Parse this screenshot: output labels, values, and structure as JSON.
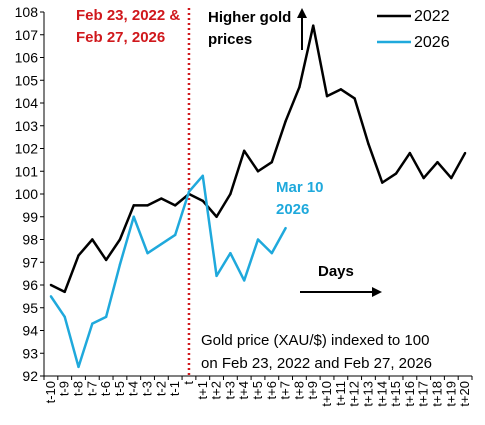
{
  "chart_data": {
    "type": "line",
    "x": [
      "t-10",
      "t-9",
      "t-8",
      "t-7",
      "t-6",
      "t-5",
      "t-4",
      "t-3",
      "t-2",
      "t-1",
      "t",
      "t+1",
      "t+2",
      "t+3",
      "t+4",
      "t+5",
      "t+6",
      "t+7",
      "t+8",
      "t+9",
      "t+10",
      "t+11",
      "t+12",
      "t+13",
      "t+14",
      "t+15",
      "t+16",
      "t+17",
      "t+18",
      "t+19",
      "t+20"
    ],
    "series": [
      {
        "name": "2022",
        "color": "#000000",
        "values": [
          96.0,
          95.7,
          97.3,
          98.0,
          97.1,
          98.0,
          99.5,
          99.5,
          99.8,
          99.5,
          100.0,
          99.7,
          99.0,
          100.0,
          101.9,
          101.0,
          101.4,
          103.2,
          104.7,
          107.4,
          104.3,
          104.6,
          104.2,
          102.2,
          100.5,
          100.9,
          101.8,
          100.7,
          101.4,
          100.7,
          101.8
        ]
      },
      {
        "name": "2026",
        "color": "#1fa9dc",
        "values": [
          95.5,
          94.6,
          92.4,
          94.3,
          94.6,
          96.9,
          99.0,
          97.4,
          97.8,
          98.2,
          100.1,
          100.8,
          96.4,
          97.4,
          96.2,
          98.0,
          97.4,
          98.5,
          null,
          null,
          null,
          null,
          null,
          null,
          null,
          null,
          null,
          null,
          null,
          null,
          null
        ]
      }
    ],
    "ylim": [
      92,
      108
    ],
    "yticks": [
      92,
      93,
      94,
      95,
      96,
      97,
      98,
      99,
      100,
      101,
      102,
      103,
      104,
      105,
      106,
      107,
      108
    ],
    "grid": false,
    "legend_position": "top-right",
    "event_marker_at": "t",
    "annotations": {
      "event_line_1": "Feb 23, 2022 &",
      "event_line_2": "Feb 27, 2026",
      "higher_line_1": "Higher gold",
      "higher_line_2": "prices",
      "latest_line_1": "Mar 10",
      "latest_line_2": "2026",
      "days": "Days",
      "note_line_1": "Gold price (XAU/$) indexed to 100",
      "note_line_2": "on Feb 23, 2022 and Feb 27, 2026"
    },
    "colors": {
      "event_line": "#d0181c",
      "latest_label": "#1fa9dc"
    }
  }
}
